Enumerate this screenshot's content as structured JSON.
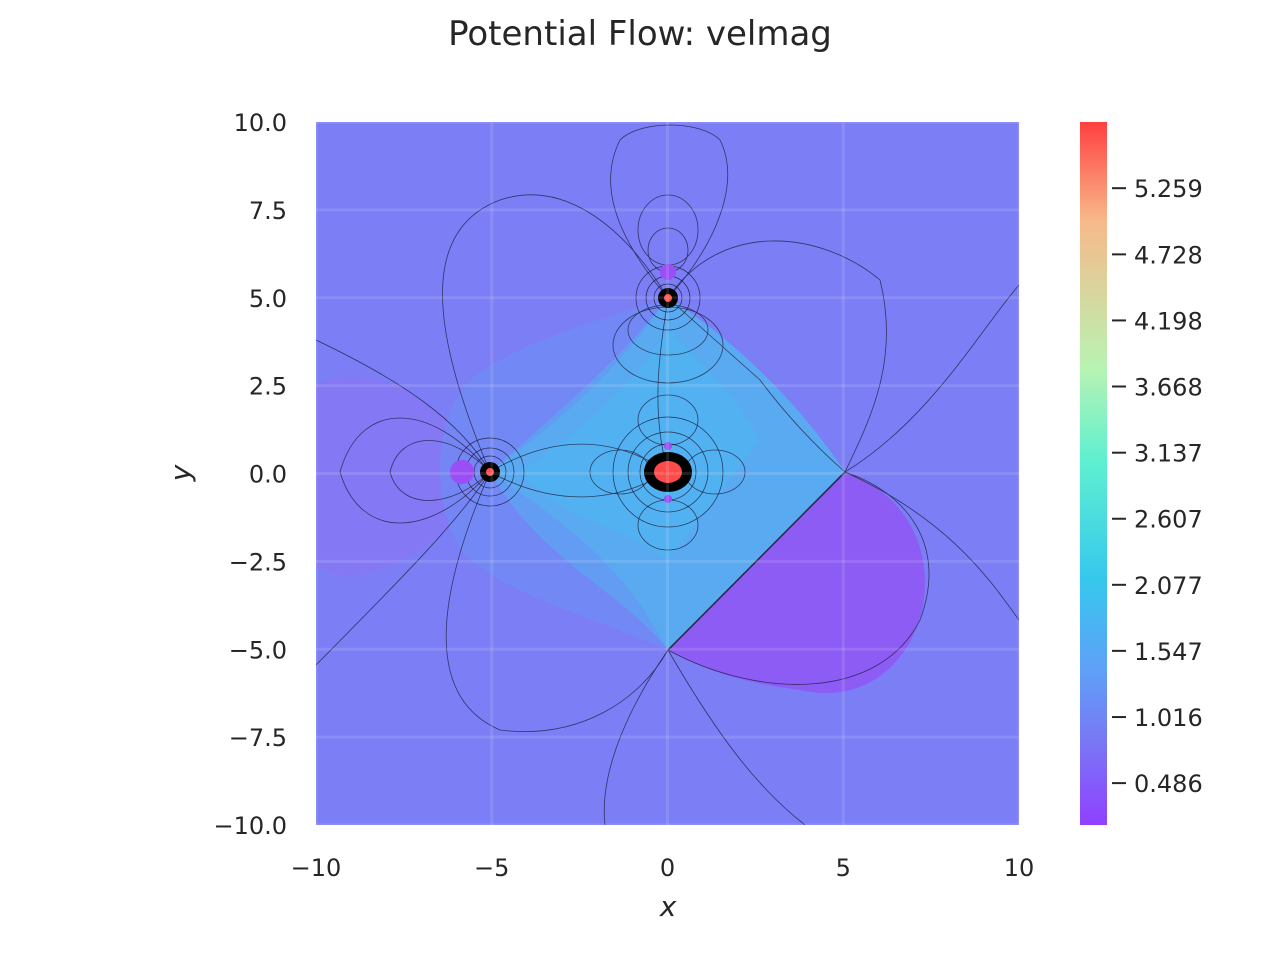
{
  "chart_data": {
    "type": "contour",
    "title": "Potential Flow: velmag",
    "xlabel": "x",
    "ylabel": "y",
    "xlim": [
      -10,
      10
    ],
    "ylim": [
      -10,
      10
    ],
    "xticks": [
      "−10",
      "−5",
      "0",
      "5",
      "10"
    ],
    "xtick_values": [
      -10,
      -5,
      0,
      5,
      10
    ],
    "yticks": [
      "10.0",
      "7.5",
      "5.0",
      "2.5",
      "0.0",
      "−2.5",
      "−5.0",
      "−7.5",
      "−10.0"
    ],
    "ytick_values": [
      10,
      7.5,
      5,
      2.5,
      0,
      -2.5,
      -5,
      -7.5,
      -10
    ],
    "grid": true,
    "colormap": "rainbow",
    "colorbar": {
      "vmin": 0.15,
      "vmax": 5.79,
      "ticks": [
        "5.259",
        "4.728",
        "4.198",
        "3.668",
        "3.137",
        "2.607",
        "2.077",
        "1.547",
        "1.016",
        "0.486"
      ],
      "tick_values": [
        5.259,
        4.728,
        4.198,
        3.668,
        3.137,
        2.607,
        2.077,
        1.547,
        1.016,
        0.486
      ],
      "colors": [
        "#ff4040",
        "#f7b98a",
        "#b8f3b2",
        "#5ff0d0",
        "#36c8ec",
        "#5fa0f8",
        "#7878f5",
        "#9040ff"
      ]
    },
    "singularities": [
      {
        "x": -5,
        "y": 0
      },
      {
        "x": 0,
        "y": 5
      },
      {
        "x": 0,
        "y": 0
      }
    ],
    "colors": {
      "background": "#7b7ef5",
      "inner_region": "#5aaaf2",
      "stagnation": "#9a4ef5",
      "peak": "#ff4a4a"
    }
  }
}
